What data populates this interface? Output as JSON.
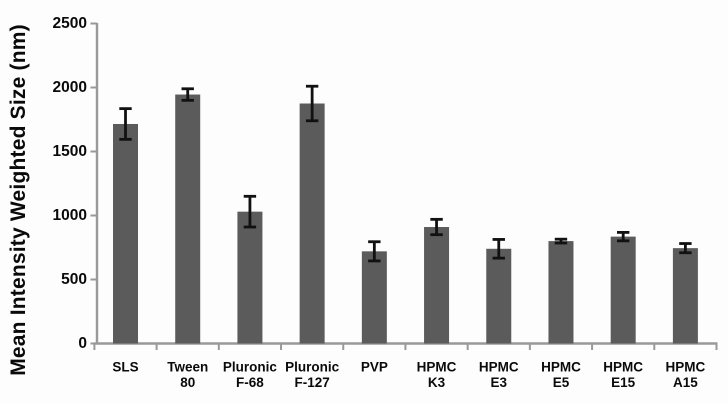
{
  "figure": {
    "background_color": "#fdfdfd"
  },
  "chart_data": {
    "type": "bar",
    "title": "",
    "xlabel": "",
    "ylabel": "Mean Intensity Weighted Size (nm)",
    "ylim": [
      0,
      2500
    ],
    "yticks": [
      0,
      500,
      1000,
      1500,
      2000,
      2500
    ],
    "grid": false,
    "legend": null,
    "categories": [
      "SLS",
      "Tween 80",
      "Pluronic F-68",
      "Pluronic F-127",
      "PVP",
      "HPMC K3",
      "HPMC E3",
      "HPMC E5",
      "HPMC E15",
      "HPMC A15"
    ],
    "category_lines": [
      [
        "SLS"
      ],
      [
        "Tween",
        "80"
      ],
      [
        "Pluronic",
        "F-68"
      ],
      [
        "Pluronic",
        "F-127"
      ],
      [
        "PVP"
      ],
      [
        "HPMC",
        "K3"
      ],
      [
        "HPMC",
        "E3"
      ],
      [
        "HPMC",
        "E5"
      ],
      [
        "HPMC",
        "E15"
      ],
      [
        "HPMC",
        "A15"
      ]
    ],
    "values": [
      1715,
      1945,
      1030,
      1875,
      720,
      910,
      740,
      800,
      835,
      745
    ],
    "errors": [
      120,
      45,
      120,
      135,
      75,
      60,
      73,
      15,
      33,
      36
    ],
    "bar_color": "#5b5b5b",
    "error_bar_color": "#111111",
    "axis_color": "#999999",
    "text_color": "#0a0a0a"
  }
}
